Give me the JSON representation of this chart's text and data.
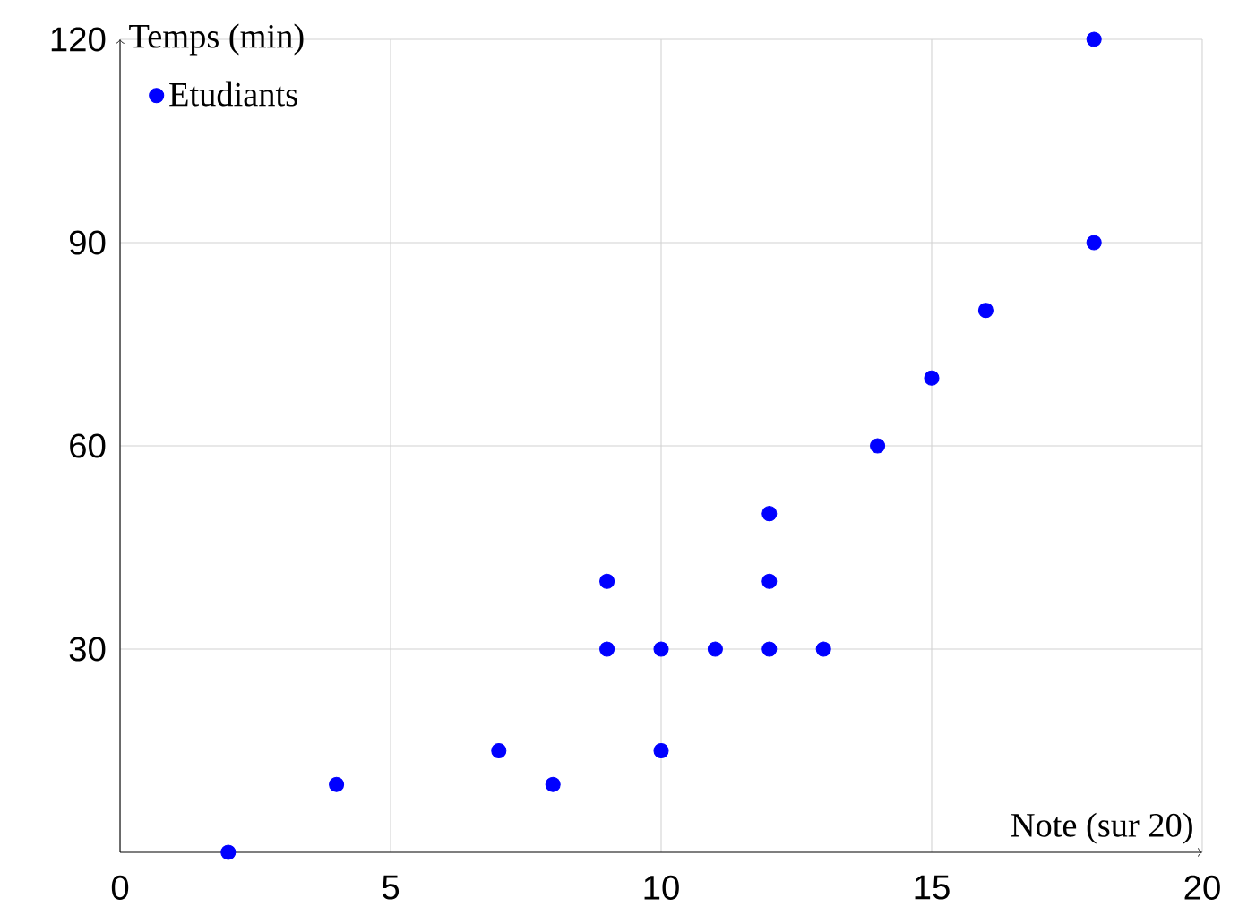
{
  "chart_data": {
    "type": "scatter",
    "xlabel": "Note (sur 20)",
    "ylabel": "Temps (min)",
    "xlim": [
      0,
      20
    ],
    "ylim": [
      0,
      120
    ],
    "xticks": [
      0,
      5,
      10,
      15,
      20
    ],
    "yticks": [
      30,
      60,
      90,
      120
    ],
    "grid": true,
    "legend": "top left",
    "series": [
      {
        "name": "Etudiants",
        "color": "#0000ff",
        "x": [
          2,
          4,
          7,
          8,
          9,
          9,
          10,
          10,
          11,
          12,
          12,
          12,
          13,
          14,
          15,
          16,
          18,
          18
        ],
        "values": [
          0,
          10,
          15,
          10,
          30,
          40,
          30,
          15,
          30,
          30,
          40,
          50,
          30,
          60,
          70,
          80,
          90,
          120
        ]
      }
    ]
  }
}
